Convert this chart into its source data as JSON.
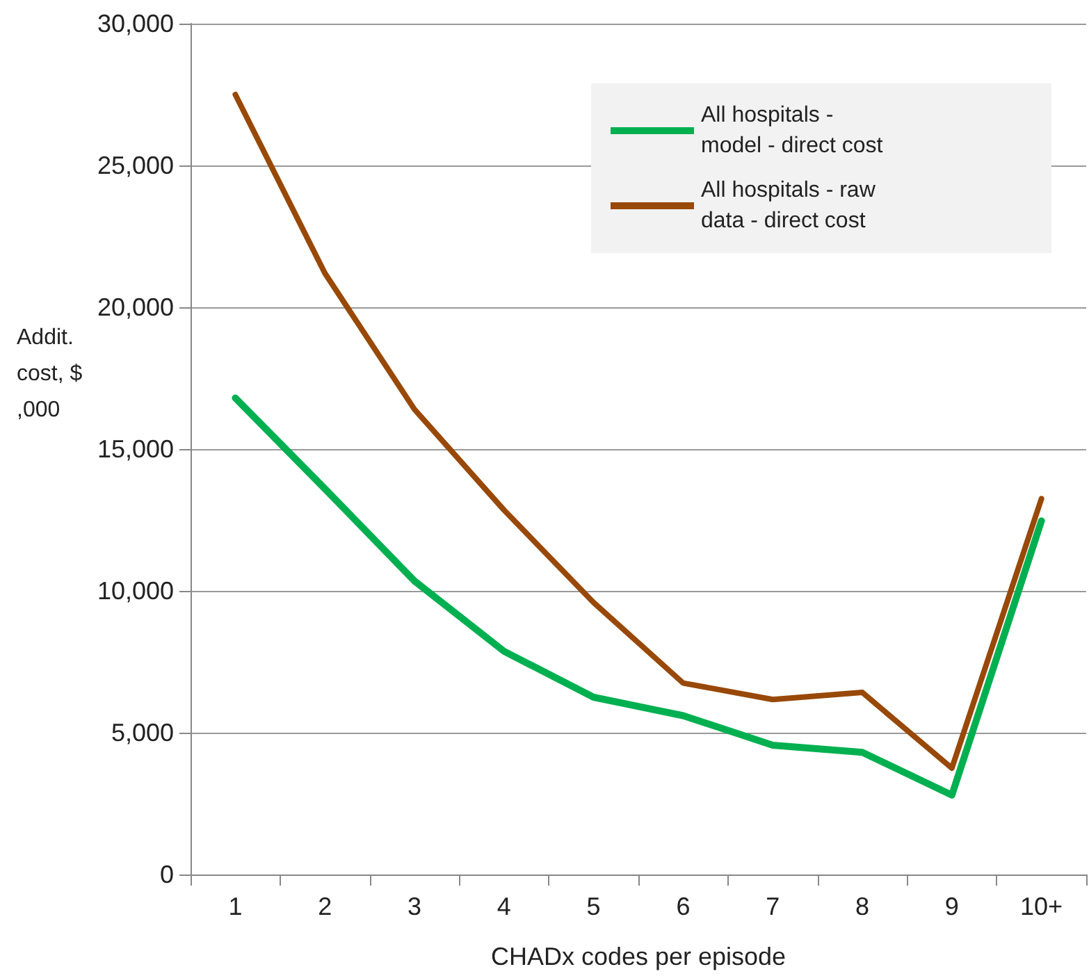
{
  "chart_data": {
    "type": "line",
    "xlabel": "CHADx codes per episode",
    "ylabel": "Addit. cost, $,000",
    "categories": [
      "1",
      "2",
      "3",
      "4",
      "5",
      "6",
      "7",
      "8",
      "9",
      "10+"
    ],
    "series": [
      {
        "name": "All hospitals - model - direct cost",
        "color": "#00b050",
        "values": [
          16800,
          13600,
          10350,
          7870,
          6250,
          5600,
          4560,
          4310,
          2800,
          12470
        ]
      },
      {
        "name": "All hospitals - raw data - direct cost",
        "color": "#984807",
        "values": [
          27500,
          21200,
          16400,
          12850,
          9590,
          6750,
          6170,
          6420,
          3750,
          13250
        ]
      }
    ],
    "ylim": [
      0,
      30000
    ],
    "yticks": [
      0,
      {
        "value": 5000,
        "label": "5,000"
      },
      {
        "value": 10000,
        "label": "10,000"
      },
      {
        "value": 15000,
        "label": "15,000"
      },
      {
        "value": 20000,
        "label": "20,000"
      },
      {
        "value": 25000,
        "label": "25,000"
      },
      {
        "value": 30000,
        "label": "30,000"
      }
    ],
    "grid": "y",
    "legend": "top right",
    "marker": "none",
    "line_style": "solid"
  }
}
